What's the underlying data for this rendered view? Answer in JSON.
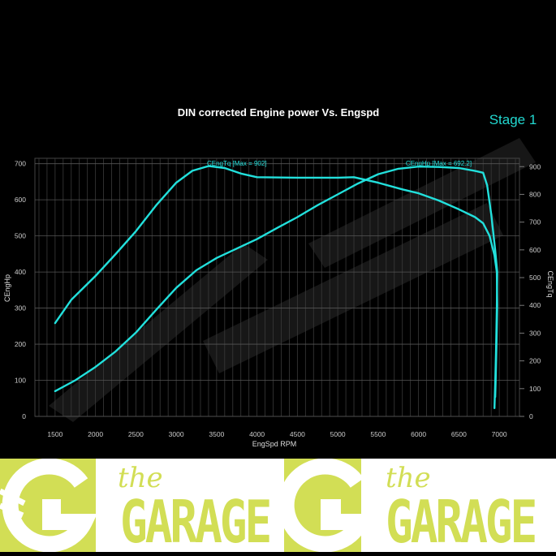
{
  "chart_data": {
    "type": "line",
    "title": "DIN corrected Engine power Vs. Engspd",
    "badge": "Stage 1",
    "xlabel": "EngSpd RPM",
    "ylabel_left": "CEngHp",
    "ylabel_right": "CEngTq",
    "xlim": [
      1250,
      7250
    ],
    "ylim_left": [
      0,
      715
    ],
    "ylim_right": [
      0,
      930
    ],
    "xticks": [
      1500,
      2000,
      2500,
      3000,
      3500,
      4000,
      4500,
      5000,
      5500,
      6000,
      6500,
      7000
    ],
    "yticks_left": [
      0,
      100,
      200,
      300,
      400,
      500,
      600,
      700
    ],
    "yticks_right": [
      0,
      100,
      200,
      300,
      400,
      500,
      600,
      700,
      800,
      900
    ],
    "grid": true,
    "color": "#22e0dc",
    "series": [
      {
        "name": "CEngTq",
        "axis": "right",
        "annotation": "CEngTq [Max = 902]",
        "annotation_x": 3750,
        "points": [
          [
            1500,
            336
          ],
          [
            1700,
            420
          ],
          [
            2000,
            506
          ],
          [
            2250,
            585
          ],
          [
            2500,
            667
          ],
          [
            2750,
            760
          ],
          [
            3000,
            842
          ],
          [
            3200,
            885
          ],
          [
            3400,
            902
          ],
          [
            3600,
            895
          ],
          [
            3800,
            875
          ],
          [
            4000,
            862
          ],
          [
            4500,
            860
          ],
          [
            5000,
            860
          ],
          [
            5200,
            862
          ],
          [
            5500,
            842
          ],
          [
            5800,
            818
          ],
          [
            6000,
            804
          ],
          [
            6250,
            778
          ],
          [
            6500,
            746
          ],
          [
            6700,
            718
          ],
          [
            6800,
            696
          ],
          [
            6880,
            650
          ],
          [
            6940,
            580
          ],
          [
            6970,
            520
          ],
          [
            6975,
            400
          ],
          [
            6965,
            250
          ],
          [
            6955,
            120
          ],
          [
            6950,
            70
          ]
        ]
      },
      {
        "name": "CEngHp",
        "axis": "left",
        "annotation": "CEngHp [Max = 692.2]",
        "annotation_x": 6250,
        "points": [
          [
            1500,
            70
          ],
          [
            1750,
            100
          ],
          [
            2000,
            137
          ],
          [
            2250,
            180
          ],
          [
            2500,
            232
          ],
          [
            2750,
            295
          ],
          [
            3000,
            356
          ],
          [
            3250,
            405
          ],
          [
            3500,
            439
          ],
          [
            3750,
            465
          ],
          [
            4000,
            491
          ],
          [
            4250,
            522
          ],
          [
            4500,
            552
          ],
          [
            4750,
            585
          ],
          [
            5000,
            615
          ],
          [
            5250,
            645
          ],
          [
            5500,
            671
          ],
          [
            5750,
            686
          ],
          [
            6000,
            692
          ],
          [
            6250,
            691
          ],
          [
            6500,
            688
          ],
          [
            6700,
            680
          ],
          [
            6800,
            675
          ],
          [
            6850,
            640
          ],
          [
            6900,
            560
          ],
          [
            6950,
            460
          ],
          [
            6975,
            400
          ],
          [
            6970,
            300
          ],
          [
            6960,
            180
          ],
          [
            6950,
            90
          ],
          [
            6940,
            23
          ]
        ]
      }
    ]
  },
  "banner": {
    "logos": [
      {
        "the": "the",
        "name": "GARAGE"
      },
      {
        "the": "the",
        "name": "GARAGE"
      }
    ],
    "color": "#d2de55"
  }
}
